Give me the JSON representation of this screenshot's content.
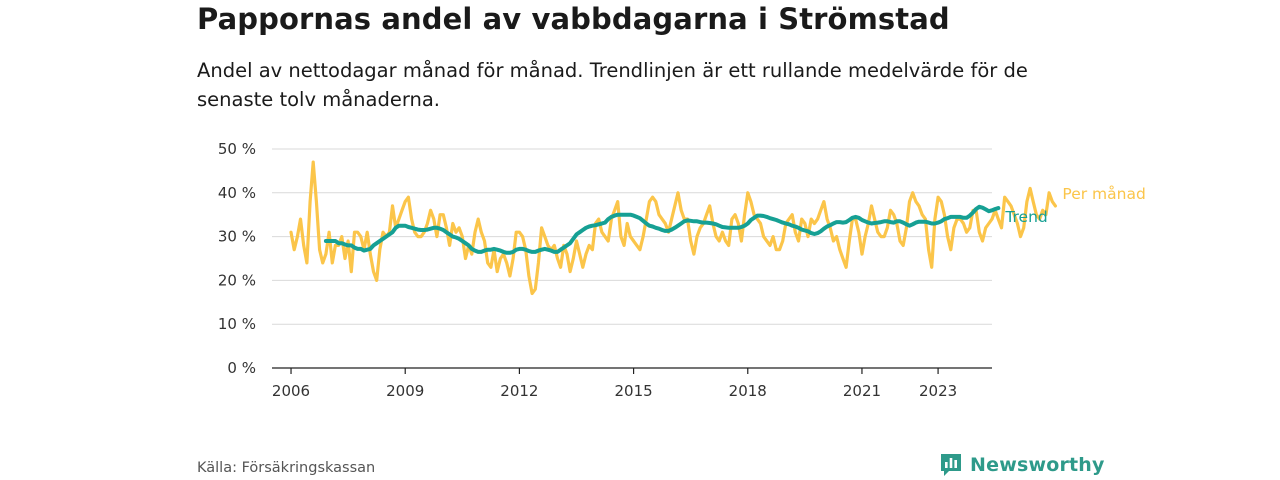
{
  "title": "Pappornas andel av vabbdagarna i Strömstad",
  "subtitle": "Andel av nettodagar månad för månad. Trendlinjen är ett rullande medelvärde för de senaste tolv månaderna.",
  "source": "Källa: Försäkringskassan",
  "brand": "Newsworthy",
  "colors": {
    "monthly": "#fbc54a",
    "trend": "#16a094",
    "grid": "#d9d9d9",
    "brand": "#2e9a8a"
  },
  "chart_data": {
    "type": "line",
    "x_ticks": [
      "2006",
      "2009",
      "2012",
      "2015",
      "2018",
      "2021",
      "2023"
    ],
    "y_ticks": [
      "0 %",
      "10 %",
      "20 %",
      "30 %",
      "40 %",
      "50 %"
    ],
    "ylim": [
      0,
      50
    ],
    "xlim": [
      "2005-07",
      "2024-06"
    ],
    "grid": "horizontal",
    "series": [
      {
        "name": "Per månad",
        "start": "2006-01",
        "values": [
          31,
          27,
          30,
          34,
          28,
          24,
          38,
          47,
          38,
          27,
          24,
          26,
          31,
          24,
          28,
          28,
          30,
          25,
          29,
          22,
          31,
          31,
          30,
          27,
          31,
          26,
          22,
          20,
          27,
          31,
          30,
          31,
          37,
          32,
          34,
          36,
          38,
          39,
          34,
          31,
          30,
          30,
          31,
          33,
          36,
          34,
          30,
          35,
          35,
          32,
          28,
          33,
          31,
          32,
          30,
          25,
          28,
          26,
          31,
          34,
          31,
          29,
          24,
          23,
          27,
          22,
          25,
          26,
          24,
          21,
          25,
          31,
          31,
          30,
          27,
          21,
          17,
          18,
          24,
          32,
          30,
          28,
          27,
          28,
          25,
          23,
          28,
          26,
          22,
          25,
          29,
          26,
          23,
          26,
          28,
          27,
          33,
          34,
          31,
          30,
          29,
          34,
          36,
          38,
          30,
          28,
          33,
          30,
          29,
          28,
          27,
          30,
          34,
          38,
          39,
          38,
          35,
          34,
          33,
          31,
          34,
          37,
          40,
          36,
          34,
          34,
          29,
          26,
          30,
          32,
          33,
          35,
          37,
          33,
          30,
          29,
          31,
          29,
          28,
          34,
          35,
          33,
          29,
          35,
          40,
          38,
          35,
          34,
          33,
          30,
          29,
          28,
          30,
          27,
          27,
          29,
          33,
          34,
          35,
          31,
          29,
          34,
          33,
          30,
          34,
          33,
          34,
          36,
          38,
          34,
          32,
          29,
          30,
          27,
          25,
          23,
          29,
          34,
          34,
          31,
          26,
          30,
          33,
          37,
          34,
          31,
          30,
          30,
          32,
          36,
          35,
          33,
          29,
          28,
          32,
          38,
          40,
          38,
          37,
          35,
          34,
          27,
          23,
          34,
          39,
          38,
          35,
          30,
          27,
          32,
          34,
          34,
          33,
          31,
          32,
          36,
          36,
          31,
          29,
          32,
          33,
          34,
          36,
          34,
          32,
          39,
          38,
          37,
          35,
          33,
          30,
          32,
          38,
          41,
          38,
          35,
          34,
          36,
          35,
          40,
          38,
          37
        ]
      },
      {
        "name": "Trend",
        "start": "2006-12",
        "values": [
          29,
          29,
          29,
          29,
          28.5,
          28.5,
          28.2,
          28,
          28,
          27.5,
          27.2,
          27.2,
          26.8,
          27,
          27.2,
          28,
          28.5,
          29,
          29.5,
          30,
          30.5,
          31,
          32,
          32.5,
          32.5,
          32.5,
          32.2,
          32,
          31.8,
          31.6,
          31.5,
          31.5,
          31.6,
          31.8,
          32,
          32,
          31.8,
          31.5,
          31,
          30.5,
          30,
          29.8,
          29.5,
          29,
          28.5,
          28,
          27.2,
          26.8,
          26.5,
          26.5,
          26.8,
          27,
          27,
          27.2,
          27,
          26.8,
          26.5,
          26.3,
          26.3,
          26.5,
          27,
          27.2,
          27.2,
          27,
          26.7,
          26.5,
          26.5,
          26.8,
          27,
          27.2,
          27,
          26.8,
          26.5,
          26.5,
          27,
          27.5,
          28,
          28.5,
          29.5,
          30.5,
          31,
          31.5,
          32,
          32.3,
          32.5,
          32.6,
          32.8,
          33,
          33.2,
          34,
          34.5,
          34.8,
          35,
          35,
          35,
          35,
          35,
          34.8,
          34.5,
          34.2,
          33.6,
          33,
          32.5,
          32.3,
          32,
          31.8,
          31.5,
          31.3,
          31.3,
          31.6,
          32,
          32.5,
          33,
          33.5,
          33.7,
          33.6,
          33.5,
          33.5,
          33.3,
          33.2,
          33.2,
          33.1,
          33,
          32.8,
          32.5,
          32.2,
          32.1,
          32,
          32,
          32,
          32,
          32.2,
          32.5,
          33,
          33.8,
          34.3,
          34.8,
          34.8,
          34.7,
          34.5,
          34.2,
          34,
          33.8,
          33.5,
          33.2,
          33,
          32.8,
          32.5,
          32.3,
          32,
          31.6,
          31.4,
          31.2,
          30.8,
          30.6,
          30.8,
          31.2,
          31.8,
          32.3,
          32.6,
          33,
          33.3,
          33.3,
          33.2,
          33.3,
          33.8,
          34.3,
          34.5,
          34.3,
          33.8,
          33.5,
          33.2,
          33,
          33.1,
          33.2,
          33.3,
          33.5,
          33.5,
          33.3,
          33.2,
          33.5,
          33.5,
          33.2,
          32.8,
          32.5,
          32.8,
          33.2,
          33.4,
          33.4,
          33.4,
          33.2,
          33,
          33,
          33.2,
          33.5,
          34,
          34.2,
          34.5,
          34.5,
          34.5,
          34.5,
          34.3,
          34.3,
          34.8,
          35.5,
          36.3,
          36.8,
          36.6,
          36.2,
          35.8,
          36,
          36.3,
          36.5
        ]
      }
    ]
  }
}
